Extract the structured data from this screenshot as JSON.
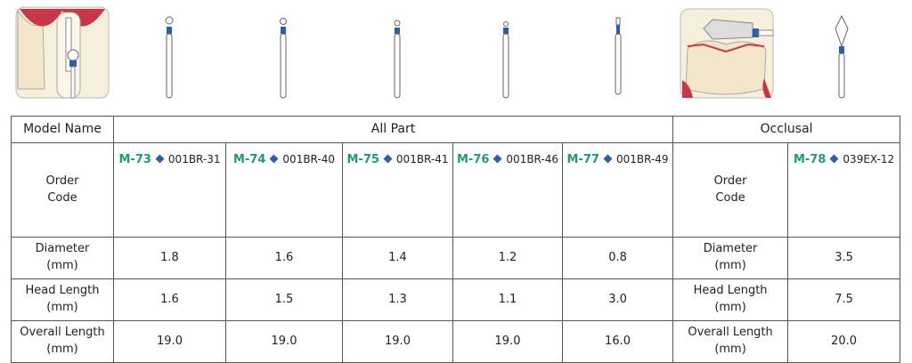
{
  "header": {
    "model_name": "Model Name",
    "groups": [
      "All Part",
      "Occlusal"
    ]
  },
  "row_labels": [
    "Order\nCode",
    "Diameter\n(mm)",
    "Head Length\n(mm)",
    "Overall Length\n(mm)"
  ],
  "occlusal_labels": [
    "Order\nCode",
    "Diameter\n(mm)",
    "Head Length\n(mm)",
    "Overall Length\n(mm)"
  ],
  "products": [
    {
      "model": "M-73",
      "code": "001BR-31",
      "diameter": "1.8",
      "head_length": "1.6",
      "overall_length": "19.0"
    },
    {
      "model": "M-74",
      "code": "001BR-40",
      "diameter": "1.6",
      "head_length": "1.5",
      "overall_length": "19.0"
    },
    {
      "model": "M-75",
      "code": "001BR-41",
      "diameter": "1.4",
      "head_length": "1.3",
      "overall_length": "19.0"
    },
    {
      "model": "M-76",
      "code": "001BR-46",
      "diameter": "1.2",
      "head_length": "1.1",
      "overall_length": "19.0"
    },
    {
      "model": "M-77",
      "code": "001BR-49",
      "diameter": "0.8",
      "head_length": "3.0",
      "overall_length": "16.0"
    },
    {
      "model": "M-78",
      "code": "039EX-12",
      "diameter": "3.5",
      "head_length": "7.5",
      "overall_length": "20.0"
    }
  ]
}
